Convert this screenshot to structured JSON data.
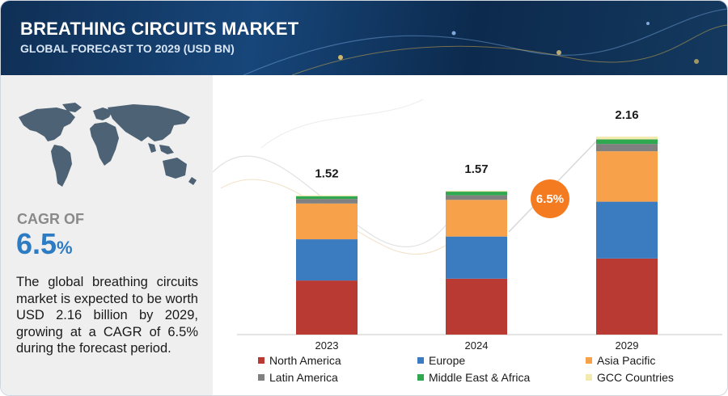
{
  "header": {
    "title": "BREATHING CIRCUITS MARKET",
    "subtitle": "GLOBAL FORECAST TO 2029 (USD BN)"
  },
  "summary_panel": {
    "cagr_label": "CAGR OF",
    "cagr_number": "6.5",
    "cagr_unit": "%",
    "description": "The global breathing circuits market is expected to be worth USD 2.16 billion by 2029, growing at a CAGR of 6.5% during the forecast period."
  },
  "cagr_bubble": "6.5%",
  "colors": {
    "north_america": "#b93a32",
    "europe": "#3b7cc0",
    "asia_pacific": "#f7a24a",
    "latin_america": "#808080",
    "middle_east_africa": "#2fa84f",
    "gcc_countries": "#f3eab0",
    "accent_orange": "#f47b20",
    "header_blue": "#17467a"
  },
  "chart_data": {
    "type": "bar",
    "stacked": true,
    "categories": [
      "2023",
      "2024",
      "2029"
    ],
    "totals": [
      1.52,
      1.57,
      2.16
    ],
    "total_labels": [
      "1.52",
      "1.57",
      "2.16"
    ],
    "series": [
      {
        "name": "North America",
        "values": [
          0.59,
          0.61,
          0.83
        ]
      },
      {
        "name": "Europe",
        "values": [
          0.45,
          0.46,
          0.62
        ]
      },
      {
        "name": "Asia Pacific",
        "values": [
          0.39,
          0.4,
          0.55
        ]
      },
      {
        "name": "Latin America",
        "values": [
          0.05,
          0.05,
          0.08
        ]
      },
      {
        "name": "Middle East & Africa",
        "values": [
          0.03,
          0.04,
          0.05
        ]
      },
      {
        "name": "GCC Countries",
        "values": [
          0.01,
          0.01,
          0.03
        ]
      }
    ],
    "legend_position": "bottom",
    "grid": false
  }
}
